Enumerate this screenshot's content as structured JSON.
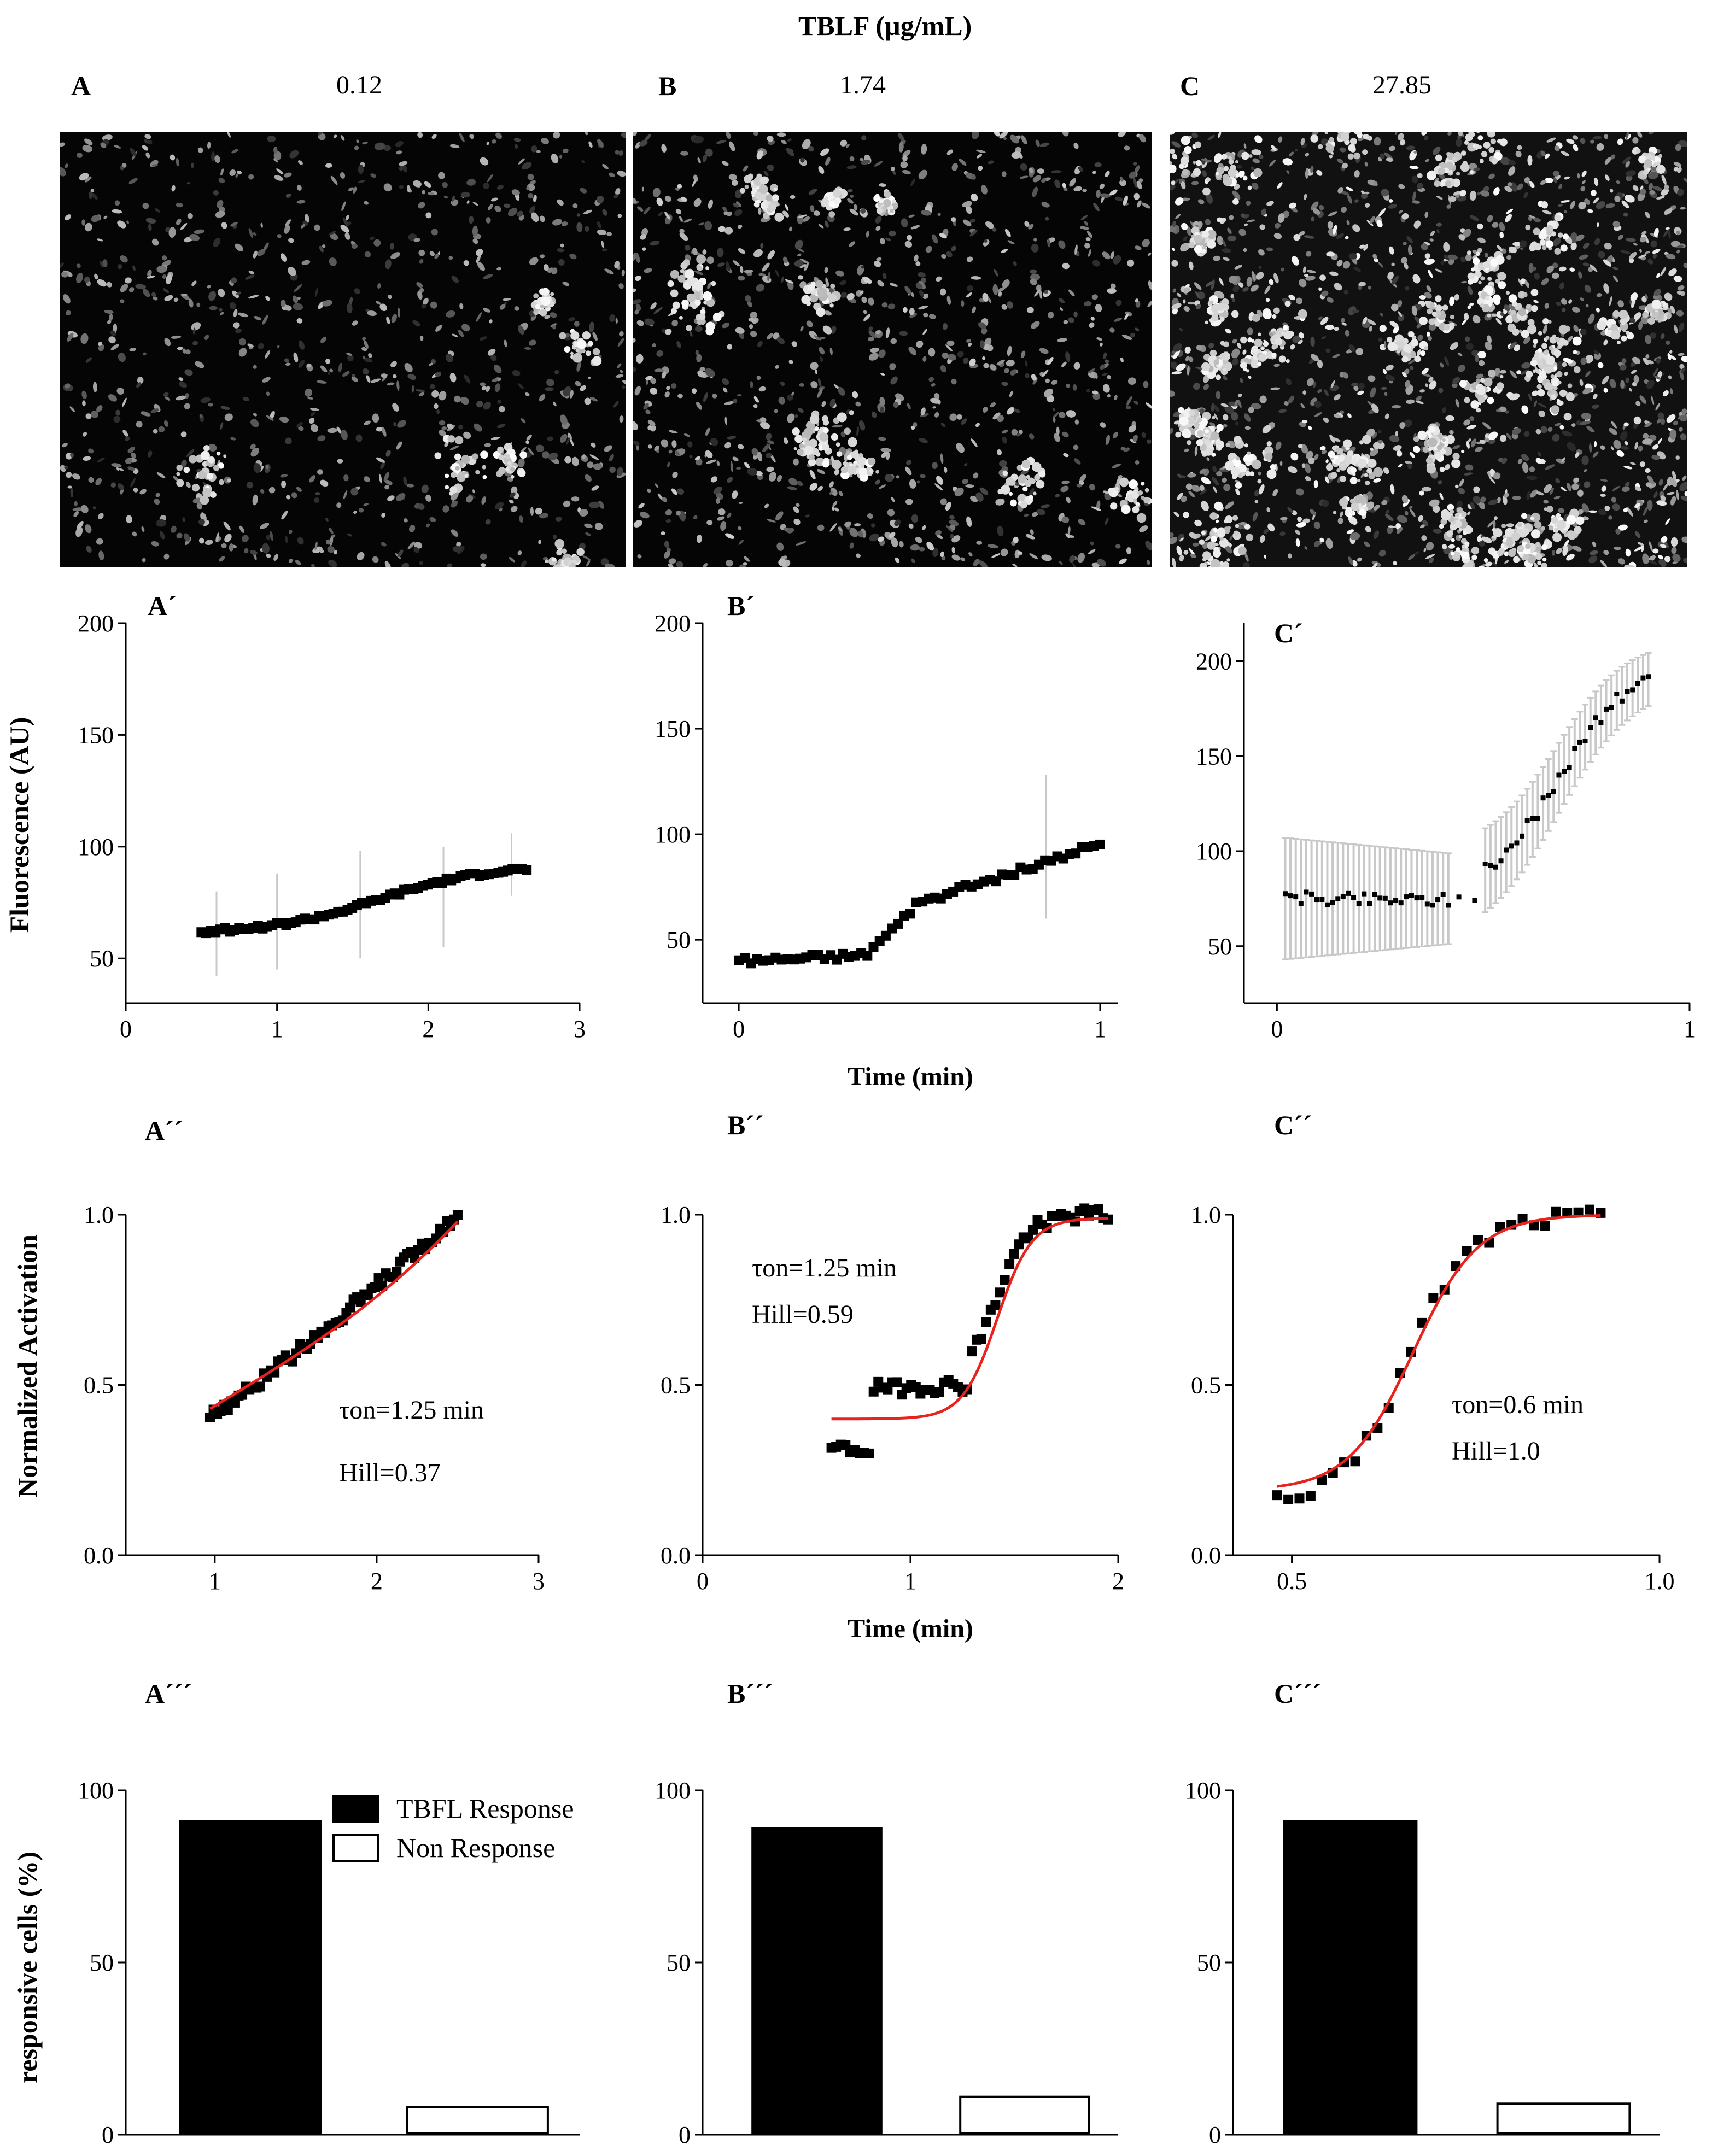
{
  "figure": {
    "header": "TBLF (µg/mL)",
    "panels": [
      {
        "letter": "A",
        "concentration": "0.12"
      },
      {
        "letter": "B",
        "concentration": "1.74"
      },
      {
        "letter": "C",
        "concentration": "27.85"
      }
    ]
  },
  "shared_labels": {
    "fluorescence_ylabel": "Fluorescence (AU)",
    "time_xlabel": "Time (min)",
    "normalized_ylabel": "Normalized Activation",
    "responsive_ylabel": "responsive cells (%)"
  },
  "colors": {
    "fit": "#e8231d",
    "marker": "#000000",
    "error": "#c8c8c8"
  },
  "chart_data": [
    {
      "id": "A1",
      "label": "A´",
      "type": "scatter",
      "title": "",
      "xlabel": "",
      "ylabel": "Fluorescence (AU)",
      "xlim": [
        0,
        3
      ],
      "ylim": [
        30,
        200
      ],
      "xticks": [
        "0",
        "1",
        "2",
        "3"
      ],
      "xtick_values": [
        0,
        1,
        2,
        3
      ],
      "yticks": [
        "50",
        "100",
        "150",
        "200"
      ],
      "ytick_values": [
        50,
        100,
        150,
        200
      ],
      "series": [
        {
          "name": "fluorescence",
          "x_start": 0.5,
          "x_end": 2.65,
          "y_start": 61,
          "y_end": 92,
          "shape": "sigmoid",
          "n": 70
        }
      ],
      "error_bars": [
        [
          0.6,
          42,
          80
        ],
        [
          1.0,
          45,
          88
        ],
        [
          1.55,
          50,
          98
        ],
        [
          2.1,
          55,
          100
        ],
        [
          2.55,
          78,
          106
        ]
      ]
    },
    {
      "id": "B1",
      "label": "B´",
      "type": "scatter",
      "title": "",
      "xlabel": "Time (min)",
      "ylabel": "",
      "xlim": [
        -0.1,
        1.05
      ],
      "ylim": [
        20,
        200
      ],
      "xticks": [
        "0",
        "1"
      ],
      "xtick_values": [
        0,
        1
      ],
      "yticks": [
        "50",
        "100",
        "150",
        "200"
      ],
      "ytick_values": [
        50,
        100,
        150,
        200
      ],
      "series": [
        {
          "name": "fluorescence",
          "x_start": 0.0,
          "x_end": 1.0,
          "y_start": 40,
          "y_end": 95,
          "shape": "step",
          "n": 60
        }
      ],
      "error_bars": [
        [
          0.85,
          60,
          128
        ]
      ]
    },
    {
      "id": "C1",
      "label": "C´",
      "type": "scatter",
      "title": "",
      "xlabel": "",
      "ylabel": "",
      "xlim": [
        -0.08,
        1.0
      ],
      "ylim": [
        20,
        220
      ],
      "xticks": [
        "0",
        "1"
      ],
      "xtick_values": [
        0,
        1
      ],
      "yticks": [
        "50",
        "100",
        "150",
        "200"
      ],
      "ytick_values": [
        50,
        100,
        150,
        200
      ],
      "series": [
        {
          "name": "fluorescence",
          "x_start": 0.02,
          "x_end": 0.9,
          "y_start": 75,
          "y_end": 195,
          "shape": "late_rise",
          "n": 70
        }
      ],
      "error_bars_band": {
        "x_from": 0.02,
        "x_to": 0.9,
        "half_width_start": 32,
        "half_width_end": 14
      }
    },
    {
      "id": "A2",
      "label": "A´´",
      "type": "line",
      "title": "",
      "xlabel": "",
      "ylabel": "Normalized Activation",
      "xlim": [
        0.45,
        3
      ],
      "ylim": [
        0,
        1
      ],
      "xticks": [
        "1",
        "2",
        "3"
      ],
      "xtick_values": [
        1,
        2,
        3
      ],
      "yticks": [
        "0.0",
        "0.5",
        "1.0"
      ],
      "ytick_values": [
        0,
        0.5,
        1
      ],
      "series": [
        {
          "name": "data",
          "x_start": 0.97,
          "x_end": 2.5,
          "y_start": 0.41,
          "y_end": 1.0,
          "shape": "a2",
          "n": 70
        },
        {
          "name": "fit",
          "x_start": 0.97,
          "x_end": 2.5,
          "y_start": 0.43,
          "y_end": 0.98,
          "shape": "fit_a2"
        }
      ],
      "annotations": [
        "τon=1.25 min",
        "Hill=0.37"
      ]
    },
    {
      "id": "B2",
      "label": "B´´",
      "type": "line",
      "title": "",
      "xlabel": "Time (min)",
      "ylabel": "",
      "xlim": [
        0,
        2
      ],
      "ylim": [
        0,
        1
      ],
      "xticks": [
        "0",
        "1",
        "2"
      ],
      "xtick_values": [
        0,
        1,
        2
      ],
      "yticks": [
        "0.0",
        "0.5",
        "1.0"
      ],
      "ytick_values": [
        0,
        0.5,
        1
      ],
      "series": [
        {
          "name": "data",
          "x_start": 0.62,
          "x_end": 1.95,
          "y_start": 0.31,
          "y_end": 1.0,
          "shape": "b2",
          "n": 60
        },
        {
          "name": "fit",
          "x_start": 0.62,
          "x_end": 1.95,
          "y_start": 0.4,
          "y_end": 0.99,
          "shape": "fit_b2"
        }
      ],
      "annotations": [
        "τon=1.25 min",
        "Hill=0.59"
      ]
    },
    {
      "id": "C2",
      "label": "C´´",
      "type": "line",
      "title": "",
      "xlabel": "",
      "ylabel": "",
      "xlim": [
        0.42,
        1.0
      ],
      "ylim": [
        0,
        1
      ],
      "xticks": [
        "0.5",
        "1.0"
      ],
      "xtick_values": [
        0.5,
        1.0
      ],
      "yticks": [
        "0.0",
        "0.5",
        "1.0"
      ],
      "ytick_values": [
        0,
        0.5,
        1
      ],
      "series": [
        {
          "name": "data",
          "x_start": 0.48,
          "x_end": 0.92,
          "y_start": 0.14,
          "y_end": 1.0,
          "shape": "c2",
          "n": 30
        },
        {
          "name": "fit",
          "x_start": 0.48,
          "x_end": 0.92,
          "y_start": 0.19,
          "y_end": 1.0,
          "shape": "fit_c2"
        }
      ],
      "annotations": [
        "τon=0.6 min",
        "Hill=1.0"
      ]
    },
    {
      "id": "A3",
      "label": "A´´´",
      "type": "bar",
      "title": "",
      "xlabel": "",
      "ylabel": "responsive cells (%)",
      "ylim": [
        0,
        100
      ],
      "yticks": [
        "0",
        "50",
        "100"
      ],
      "ytick_values": [
        0,
        50,
        100
      ],
      "categories": [
        "TBFL Response",
        "Non Response"
      ],
      "values": [
        91,
        8
      ],
      "legend": [
        "TBFL Response",
        "Non Response"
      ]
    },
    {
      "id": "B3",
      "label": "B´´´",
      "type": "bar",
      "title": "",
      "xlabel": "",
      "ylabel": "",
      "ylim": [
        0,
        100
      ],
      "yticks": [
        "0",
        "50",
        "100"
      ],
      "ytick_values": [
        0,
        50,
        100
      ],
      "categories": [
        "TBFL Response",
        "Non Response"
      ],
      "values": [
        89,
        11
      ]
    },
    {
      "id": "C3",
      "label": "C´´´",
      "type": "bar",
      "title": "",
      "xlabel": "",
      "ylabel": "",
      "ylim": [
        0,
        100
      ],
      "yticks": [
        "0",
        "50",
        "100"
      ],
      "ytick_values": [
        0,
        50,
        100
      ],
      "categories": [
        "TBFL Response",
        "Non Response"
      ],
      "values": [
        91,
        9
      ]
    }
  ]
}
